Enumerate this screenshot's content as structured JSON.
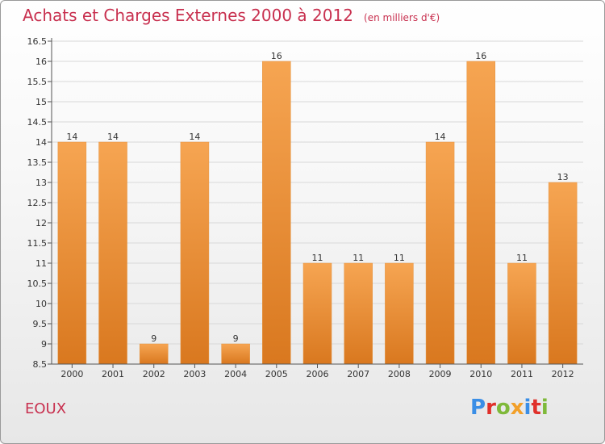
{
  "title": "Achats et Charges Externes 2000 à 2012",
  "subtitle": "(en milliers d'€)",
  "town": "EOUX",
  "logo": {
    "text": "Proxiti",
    "colors": [
      "#3a8ee6",
      "#e0302a",
      "#7fb93a",
      "#f2a02a",
      "#3a8ee6",
      "#e0302a",
      "#7fb93a"
    ]
  },
  "colors": {
    "bar_light": "#f6a552",
    "bar_dark": "#d9781f",
    "title": "#c8304f"
  },
  "chart_data": {
    "type": "bar",
    "categories": [
      "2000",
      "2001",
      "2002",
      "2003",
      "2004",
      "2005",
      "2006",
      "2007",
      "2008",
      "2009",
      "2010",
      "2011",
      "2012"
    ],
    "values": [
      14,
      14,
      9,
      14,
      9,
      16,
      11,
      11,
      11,
      14,
      16,
      11,
      13
    ],
    "value_labels": [
      "14",
      "14",
      "9",
      "14",
      "9",
      "16",
      "11",
      "11",
      "11",
      "14",
      "16",
      "11",
      "13"
    ],
    "ylim": [
      8.5,
      16.5
    ],
    "yticks": [
      8.5,
      9,
      9.5,
      10,
      10.5,
      11,
      11.5,
      12,
      12.5,
      13,
      13.5,
      14,
      14.5,
      15,
      15.5,
      16,
      16.5
    ],
    "ytick_labels": [
      "8.5",
      "9",
      "9.5",
      "10",
      "10.5",
      "11",
      "11.5",
      "12",
      "12.5",
      "13",
      "13.5",
      "14",
      "14.5",
      "15",
      "15.5",
      "16",
      "16.5"
    ],
    "grid": true,
    "title": "Achats et Charges Externes 2000 à 2012",
    "xlabel": "",
    "ylabel": ""
  }
}
